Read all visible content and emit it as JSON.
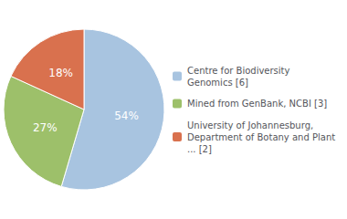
{
  "chart_data": {
    "type": "pie",
    "categories": [
      "Centre for Biodiversity\nGenomics [6]",
      "Mined from GenBank, NCBI [3]",
      "University of Johannesburg,\nDepartment of Botany and Plant\n... [2]"
    ],
    "values": [
      54,
      27,
      18
    ],
    "value_labels": [
      "54%",
      "27%",
      "18%"
    ],
    "colors": [
      "#a8c4e0",
      "#9dc06a",
      "#d9714e"
    ],
    "data_labels": true,
    "legend": "right"
  }
}
